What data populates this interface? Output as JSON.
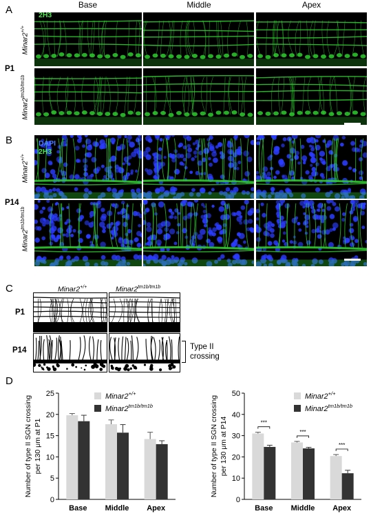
{
  "panels": {
    "A": {
      "letter": "A",
      "columns": [
        "Base",
        "Middle",
        "Apex"
      ],
      "stain": "2H3",
      "age": "P1",
      "rows": [
        {
          "genotype": "Minar2",
          "sup": "+/+"
        },
        {
          "genotype": "Minar2",
          "sup": "tm1b/tm1b"
        }
      ]
    },
    "B": {
      "letter": "B",
      "stain1": "DAPI",
      "stain2": "2H3",
      "age": "P14",
      "rows": [
        {
          "genotype": "Minar2",
          "sup": "+/+"
        },
        {
          "genotype": "Minar2",
          "sup": "tm1b/tm1b"
        }
      ]
    },
    "C": {
      "letter": "C",
      "cols": [
        {
          "genotype": "Minar2",
          "sup": "+/+"
        },
        {
          "genotype": "Minar2",
          "sup": "tm1b/tm1b"
        }
      ],
      "rows": [
        "P1",
        "P14"
      ],
      "annotation_line1": "Type II",
      "annotation_line2": "crossing"
    },
    "D": {
      "letter": "D"
    }
  },
  "colors": {
    "control": "#d9d9d9",
    "mutant": "#333333",
    "fiber": "#2ecc2e",
    "nuclei": "#2a3cff"
  },
  "chart_data": [
    {
      "type": "bar",
      "categories": [
        "Base",
        "Middle",
        "Apex"
      ],
      "ylabel_line1": "Number of type II SGN crossing",
      "ylabel_line2": "per 130 μm at P1",
      "ylim": [
        0,
        25
      ],
      "yticks": [
        0,
        5,
        10,
        15,
        20,
        25
      ],
      "legend_position": "top-right",
      "series": [
        {
          "name": "Minar2",
          "sup": "+/+",
          "values": [
            19.8,
            17.7,
            14.2
          ],
          "errors": [
            0.4,
            1.0,
            1.6
          ]
        },
        {
          "name": "Minar2",
          "sup": "tm1b/tm1b",
          "values": [
            18.4,
            15.7,
            13.0
          ],
          "errors": [
            1.4,
            1.9,
            0.8
          ]
        }
      ],
      "significance": []
    },
    {
      "type": "bar",
      "categories": [
        "Base",
        "Middle",
        "Apex"
      ],
      "ylabel_line1": "Number of type II SGN crossing",
      "ylabel_line2": "per 130 μm at P14",
      "ylim": [
        0,
        50
      ],
      "yticks": [
        0,
        10,
        20,
        30,
        40,
        50
      ],
      "legend_position": "top-right",
      "series": [
        {
          "name": "Minar2",
          "sup": "+/+",
          "values": [
            31.0,
            26.8,
            20.4
          ],
          "errors": [
            0.6,
            0.5,
            0.7
          ]
        },
        {
          "name": "Minar2",
          "sup": "tm1b/tm1b",
          "values": [
            24.7,
            24.0,
            12.3
          ],
          "errors": [
            0.8,
            0.5,
            1.4
          ]
        }
      ],
      "significance": [
        "***",
        "***",
        "***"
      ]
    }
  ]
}
